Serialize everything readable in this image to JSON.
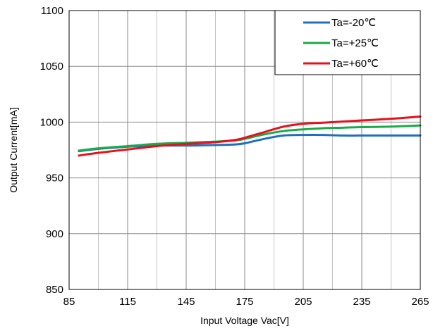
{
  "chart_data": {
    "type": "line",
    "title": "",
    "xlabel": "Input Voltage Vac[V]",
    "ylabel": "Output Current[mA]",
    "xlim": [
      85,
      265
    ],
    "ylim": [
      850,
      1100
    ],
    "x_ticks": [
      85,
      115,
      145,
      175,
      205,
      235,
      265
    ],
    "x_tick_labels": [
      "85",
      "115",
      "145",
      "175",
      "205",
      "235",
      "265"
    ],
    "y_ticks": [
      850,
      900,
      950,
      1000,
      1050,
      1100
    ],
    "y_tick_labels": [
      "850",
      "900",
      "950",
      "1000",
      "1050",
      "1100"
    ],
    "x_minor_step": 15,
    "grid": true,
    "legend_position": "top-right",
    "series": [
      {
        "name": "Ta=-20℃",
        "color": "#1f6fc0",
        "x": [
          90,
          100,
          115,
          130,
          145,
          160,
          170,
          175,
          185,
          195,
          205,
          215,
          225,
          235,
          250,
          265
        ],
        "y": [
          974,
          976,
          978,
          979,
          979,
          979.5,
          980,
          981,
          985,
          988,
          988.5,
          988.5,
          988,
          988,
          988,
          988
        ]
      },
      {
        "name": "Ta=+25℃",
        "color": "#1aaa4a",
        "x": [
          90,
          100,
          115,
          130,
          145,
          160,
          170,
          175,
          185,
          195,
          205,
          215,
          225,
          235,
          250,
          265
        ],
        "y": [
          974.5,
          976.5,
          978.5,
          980.5,
          981.5,
          982.5,
          983.5,
          985,
          989,
          992,
          993.5,
          994.5,
          995,
          995.5,
          996,
          997
        ]
      },
      {
        "name": "Ta=+60℃",
        "color": "#e8101a",
        "x": [
          90,
          100,
          115,
          130,
          145,
          160,
          170,
          175,
          185,
          195,
          205,
          215,
          225,
          235,
          250,
          265
        ],
        "y": [
          970,
          972.5,
          975.5,
          978.5,
          980.5,
          982,
          984,
          986,
          991,
          996,
          998.5,
          999.5,
          1000.5,
          1001.5,
          1003,
          1005
        ]
      }
    ]
  }
}
